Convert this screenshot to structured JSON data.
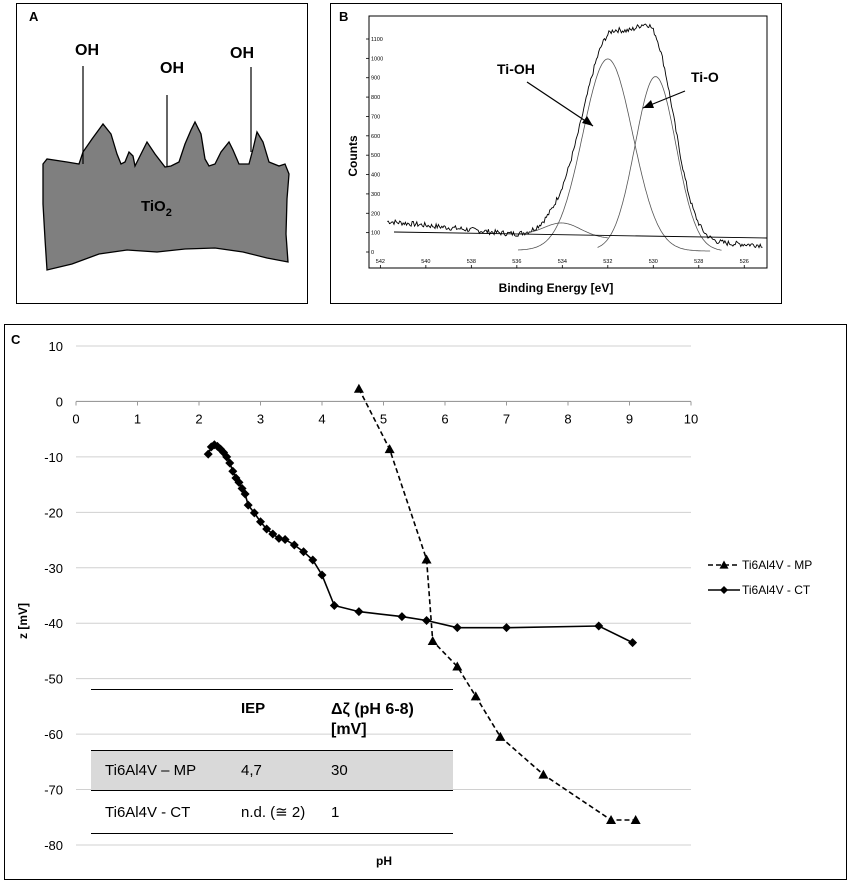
{
  "panel_a": {
    "letter": "A",
    "groups": [
      "OH",
      "OH",
      "OH"
    ],
    "surface_label": "TiO",
    "surface_sub": "2",
    "fill_color": "#7f7f7f"
  },
  "panel_b": {
    "letter": "B",
    "xlabel": "Binding Energy [eV]",
    "ylabel": "Counts",
    "xticks": [
      "542",
      "540",
      "538",
      "536",
      "534",
      "532",
      "530",
      "528",
      "526"
    ],
    "yticks": [
      "0",
      "100",
      "200",
      "300",
      "400",
      "500",
      "600",
      "700",
      "800",
      "900",
      "1000",
      "1100"
    ],
    "annotations": [
      "Ti-OH",
      "Ti-O"
    ]
  },
  "panel_c": {
    "letter": "C"
  },
  "chart_data": {
    "type": "line",
    "title": "",
    "xlabel": "pH",
    "ylabel": "z [mV]",
    "xlim": [
      0,
      10
    ],
    "ylim": [
      -80,
      10
    ],
    "xticks": [
      "0",
      "1",
      "2",
      "3",
      "4",
      "5",
      "6",
      "7",
      "8",
      "9",
      "10"
    ],
    "yticks": [
      "10",
      "0",
      "-10",
      "-20",
      "-30",
      "-40",
      "-50",
      "-60",
      "-70",
      "-80"
    ],
    "legend_position": "right",
    "series": [
      {
        "name": "Ti6Al4V - MP",
        "style": "dashed",
        "marker": "triangle",
        "x": [
          4.6,
          5.1,
          5.7,
          5.8,
          6.2,
          6.5,
          6.9,
          7.6,
          8.7,
          9.1
        ],
        "y": [
          2.3,
          -8.6,
          -28.5,
          -43.2,
          -47.8,
          -53.2,
          -60.5,
          -67.3,
          -75.5,
          -75.5
        ]
      },
      {
        "name": "Ti6Al4V - CT",
        "style": "solid",
        "marker": "diamond",
        "x": [
          2.15,
          2.2,
          2.25,
          2.3,
          2.35,
          2.4,
          2.45,
          2.5,
          2.55,
          2.6,
          2.65,
          2.7,
          2.75,
          2.8,
          2.9,
          3.0,
          3.1,
          3.2,
          3.3,
          3.4,
          3.55,
          3.7,
          3.85,
          4.0,
          4.2,
          4.6,
          5.3,
          5.7,
          6.2,
          7.0,
          8.5,
          9.05
        ],
        "y": [
          -9.5,
          -8.2,
          -7.8,
          -8.1,
          -8.6,
          -9.2,
          -10.0,
          -11.1,
          -12.6,
          -13.8,
          -14.6,
          -15.7,
          -16.7,
          -18.7,
          -20.1,
          -21.7,
          -23.0,
          -23.9,
          -24.7,
          -24.9,
          -25.9,
          -27.1,
          -28.6,
          -31.3,
          -36.8,
          -37.9,
          -38.8,
          -39.5,
          -40.8,
          -40.8,
          -40.5,
          -43.5
        ]
      }
    ]
  },
  "table": {
    "headers": [
      "",
      "IEP",
      "Δζ (pH 6-8) [mV]"
    ],
    "header_line1": "Δζ (pH 6-8)",
    "header_line2": "[mV]",
    "rows": [
      {
        "name": "Ti6Al4V – MP",
        "iep": "4,7",
        "delta": "30"
      },
      {
        "name": "Ti6Al4V - CT",
        "iep": "n.d. (≅ 2)",
        "delta": "1"
      }
    ],
    "highlight_color": "#d9d9d9"
  }
}
